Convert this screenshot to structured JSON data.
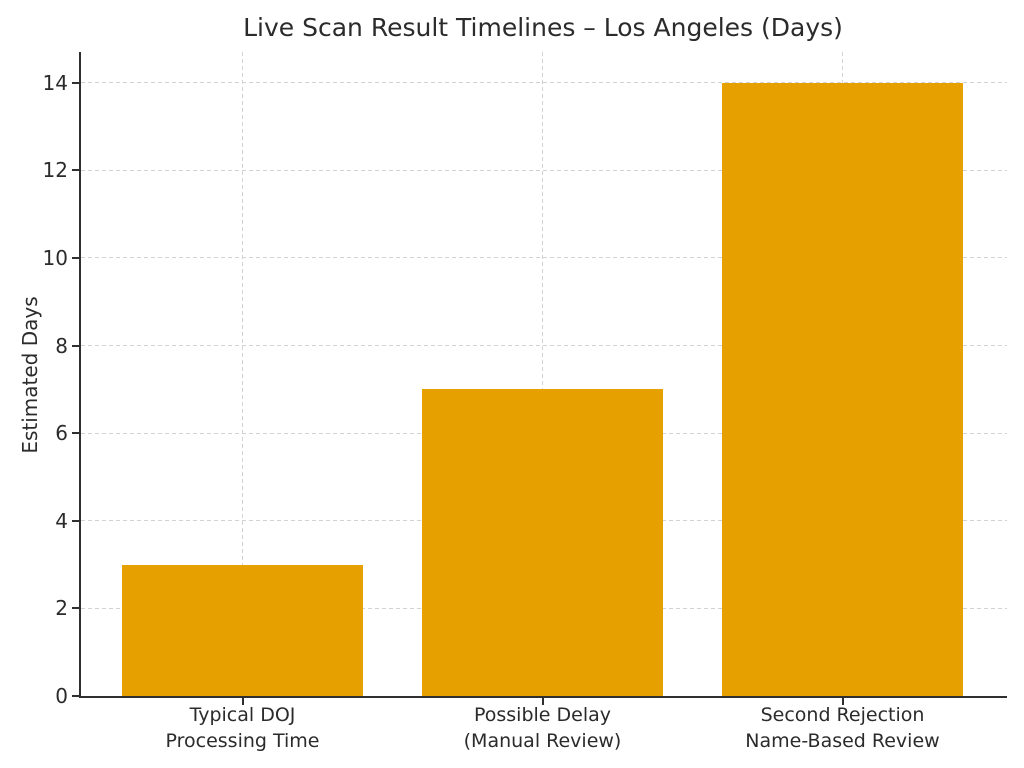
{
  "chart_data": {
    "type": "bar",
    "title": "Live Scan Result Timelines – Los Angeles (Days)",
    "xlabel": "",
    "ylabel": "Estimated Days",
    "categories": [
      "Typical DOJ\nProcessing Time",
      "Possible Delay\n(Manual Review)",
      "Second Rejection\nName-Based Review"
    ],
    "values": [
      3,
      7,
      14
    ],
    "yticks": [
      0,
      2,
      4,
      6,
      8,
      10,
      12,
      14
    ],
    "ylim": [
      0,
      14.7
    ],
    "grid": true,
    "grid_style": "dashed",
    "legend": null,
    "colors": {
      "bar": "#E6A000",
      "text": "#2b2b2b",
      "grid": "#d2d2d2",
      "spine": "#2f2f2f",
      "background": "#ffffff"
    }
  }
}
